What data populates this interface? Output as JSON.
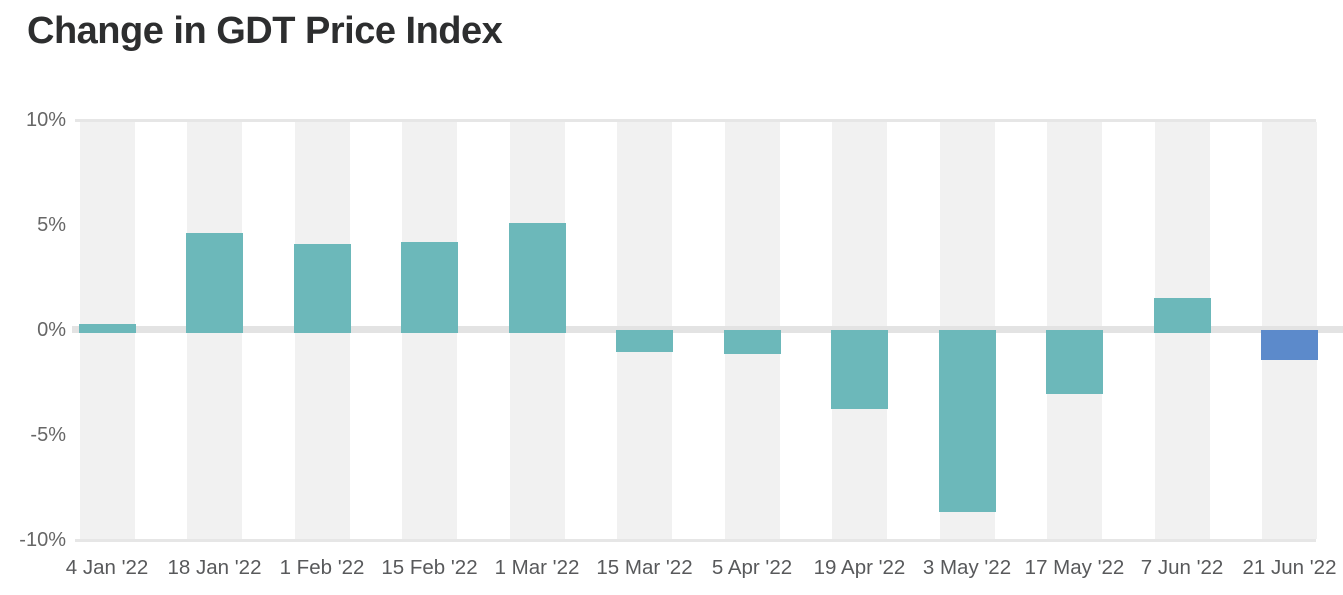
{
  "chart_data": {
    "type": "bar",
    "title": "Change in GDT Price Index",
    "xlabel": "",
    "ylabel": "",
    "unit": "%",
    "categories": [
      "4 Jan '22",
      "18 Jan '22",
      "1 Feb '22",
      "15 Feb '22",
      "1 Mar '22",
      "15 Mar '22",
      "5 Apr '22",
      "19 Apr '22",
      "3 May '22",
      "17 May '22",
      "7 Jun '22",
      "21 Jun '22"
    ],
    "values": [
      0.3,
      4.6,
      4.1,
      4.2,
      5.1,
      -0.9,
      -1.0,
      -3.6,
      -8.5,
      -2.9,
      1.5,
      -1.3
    ],
    "ylim": [
      -10,
      10
    ],
    "ytick_labels": [
      "10%",
      "5%",
      "0%",
      "-5%",
      "-10%"
    ],
    "ytick_values": [
      10,
      5,
      0,
      -5,
      -10
    ],
    "grid": "vertical-category-bands",
    "legend_position": "none",
    "colors": {
      "bar": "#6cb8ba",
      "highlight_bar": "#5c8acb",
      "band": "#f1f1f1",
      "zero_line": "#e3e3e3",
      "gridline": "#e6e6e6",
      "title_text": "#2d2e2f",
      "axis_text": "#666666"
    },
    "highlight_index": 11
  }
}
